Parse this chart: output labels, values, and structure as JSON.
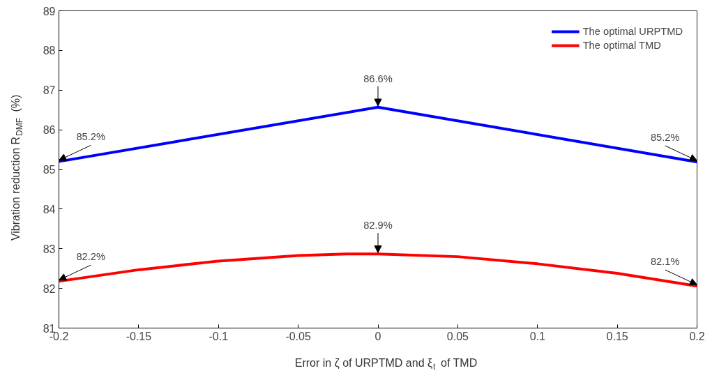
{
  "chart_data": {
    "type": "line",
    "xlabel": "Error in ζ of URPTMD and ξ$_{t}$ of TMD",
    "ylabel": "Vibration reduction R$_{DMF}$ (%)",
    "xlim": [
      -0.2,
      0.2
    ],
    "ylim": [
      81,
      89
    ],
    "xticks": [
      -0.2,
      -0.15,
      -0.1,
      -0.05,
      0,
      0.05,
      0.1,
      0.15,
      0.2
    ],
    "yticks": [
      81,
      82,
      83,
      84,
      85,
      86,
      87,
      88,
      89
    ],
    "grid": false,
    "legend": "top right",
    "line_style": "solid",
    "marker": "none",
    "series": [
      {
        "name": "The optimal URPTMD",
        "color": "#0000ff",
        "x": [
          -0.2,
          0,
          0.2
        ],
        "values": [
          85.2,
          86.57,
          85.19
        ]
      },
      {
        "name": "The optimal TMD",
        "color": "#ff0000",
        "x": [
          -0.2,
          -0.15,
          -0.1,
          -0.05,
          -0.02,
          0,
          0.05,
          0.1,
          0.15,
          0.2
        ],
        "values": [
          82.18,
          82.47,
          82.69,
          82.83,
          82.87,
          82.87,
          82.8,
          82.62,
          82.38,
          82.06
        ]
      }
    ],
    "annotations": [
      {
        "text": "85.2%",
        "x": -0.2,
        "y": 85.2
      },
      {
        "text": "86.6%",
        "x": 0,
        "y": 86.57
      },
      {
        "text": "85.2%",
        "x": 0.2,
        "y": 85.19
      },
      {
        "text": "82.2%",
        "x": -0.2,
        "y": 82.18
      },
      {
        "text": "82.9%",
        "x": 0,
        "y": 82.87
      },
      {
        "text": "82.1%",
        "x": 0.2,
        "y": 82.06
      }
    ]
  }
}
